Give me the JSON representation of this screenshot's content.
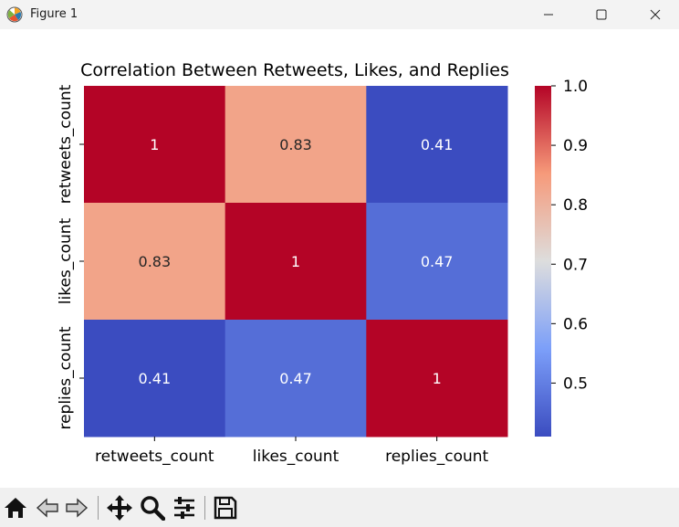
{
  "window": {
    "title": "Figure 1",
    "controls": [
      "minimize-icon",
      "maximize-icon",
      "close-icon"
    ]
  },
  "toolbar": {
    "buttons": [
      "home-icon",
      "back-icon",
      "forward-icon",
      "pan-icon",
      "zoom-icon",
      "configure-subplots-icon",
      "save-icon"
    ]
  },
  "chart_data": {
    "type": "heatmap",
    "title": "Correlation Between Retweets, Likes, and Replies",
    "x_labels": [
      "retweets_count",
      "likes_count",
      "replies_count"
    ],
    "y_labels": [
      "retweets_count",
      "likes_count",
      "replies_count"
    ],
    "values": [
      [
        1,
        0.83,
        0.41
      ],
      [
        0.83,
        1,
        0.47
      ],
      [
        0.41,
        0.47,
        1
      ]
    ],
    "annotations": [
      [
        "1",
        "0.83",
        "0.41"
      ],
      [
        "0.83",
        "1",
        "0.47"
      ],
      [
        "0.41",
        "0.47",
        "1"
      ]
    ],
    "colormap": "coolwarm",
    "vmin": 0.41,
    "vmax": 1.0,
    "colorbar_ticks": [
      {
        "value": 1.0,
        "label": "1.0"
      },
      {
        "value": 0.9,
        "label": "0.9"
      },
      {
        "value": 0.8,
        "label": "0.8"
      },
      {
        "value": 0.7,
        "label": "0.7"
      },
      {
        "value": 0.6,
        "label": "0.6"
      },
      {
        "value": 0.5,
        "label": "0.5"
      }
    ],
    "colorbar_placement": "right"
  }
}
